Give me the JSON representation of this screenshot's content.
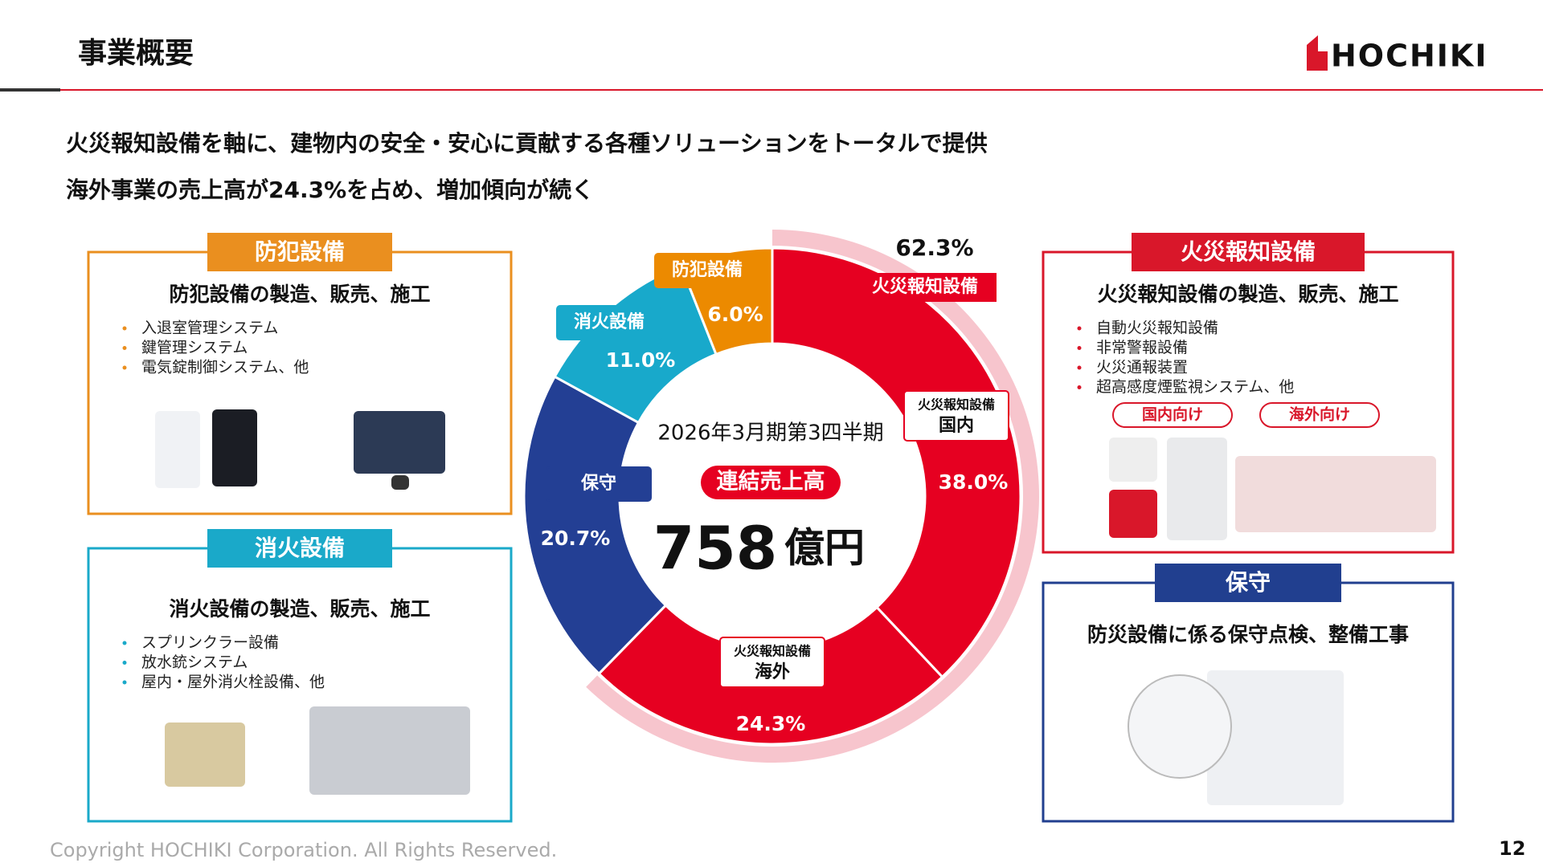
{
  "header": {
    "title": "事業概要",
    "logo": "HOCHIKI"
  },
  "headlines": [
    "火災報知設備を軸に、建物内の安全・安心に貢献する各種ソリューションをトータルで提供",
    "海外事業の売上高が24.3%を占め、増加傾向が続く"
  ],
  "panels": [
    {
      "tag": "防犯設備",
      "heading": "防犯設備の製造、販売、施工",
      "color": "#ea8f1f",
      "items": [
        "入退室管理システム",
        "鍵管理システム",
        "電気錠制御システム、他"
      ]
    },
    {
      "tag": "消火設備",
      "heading": "消火設備の製造、販売、施工",
      "color": "#1aa9c9",
      "items": [
        "スプリンクラー設備",
        "放水銃システム",
        "屋内・屋外消火栓設備、他"
      ]
    },
    {
      "tag": "火災報知設備",
      "heading": "火災報知設備の製造、販売、施工",
      "color": "#d9172a",
      "items": [
        "自動火災報知設備",
        "非常警報設備",
        "火災通報装置",
        "超高感度煙監視システム、他"
      ],
      "markets": [
        "国内向け",
        "海外向け"
      ]
    },
    {
      "tag": "保守",
      "heading": "防災設備に係る保守点検、整備工事",
      "color": "#213f8f",
      "items": []
    }
  ],
  "chart_data": {
    "type": "pie",
    "period": "2026年3月期第3四半期",
    "center_label": "連結売上高",
    "total": 758,
    "total_unit": "億円",
    "categories": [
      {
        "group": "火災報知設備",
        "name": "国内"
      },
      {
        "group": "火災報知設備",
        "name": "海外"
      },
      {
        "name": "保守"
      },
      {
        "name": "消火設備"
      },
      {
        "name": "防犯設備"
      }
    ],
    "values": [
      38.0,
      24.3,
      20.7,
      11.0,
      6.0
    ],
    "value_labels": [
      "38.0%",
      "24.3%",
      "20.7%",
      "11.0%",
      "6.0%"
    ],
    "colors": [
      "#e60021",
      "#e60021",
      "#233f94",
      "#18a9cb",
      "#ec8a00"
    ],
    "outer_ring": {
      "label": "火災報知設備",
      "value": 62.3,
      "value_label": "62.3%",
      "color": "#f7c5cd"
    }
  },
  "footer": {
    "copyright": "Copyright HOCHIKI Corporation. All Rights Reserved.",
    "page": "12"
  }
}
